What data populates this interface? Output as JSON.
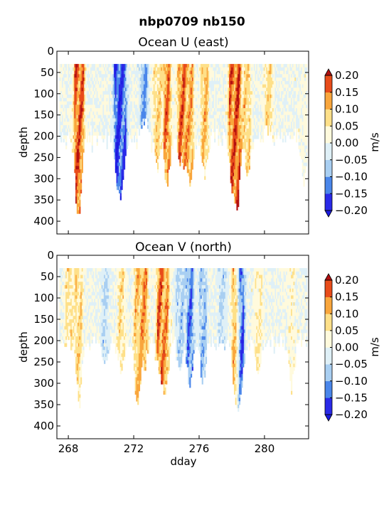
{
  "figure": {
    "title": "nbp0709 nb150"
  },
  "chart_data": [
    {
      "type": "heatmap",
      "title": "Ocean U (east)",
      "xlabel": "",
      "ylabel": "depth",
      "xlim": [
        267.3,
        282.7
      ],
      "ylim": [
        430,
        0
      ],
      "x_ticks": [
        268,
        272,
        276,
        280
      ],
      "x_tick_labels": [
        "",
        "",
        "",
        ""
      ],
      "y_ticks": [
        0,
        50,
        100,
        150,
        200,
        250,
        300,
        350,
        400
      ],
      "y_tick_labels": [
        "0",
        "50",
        "100",
        "150",
        "200",
        "250",
        "300",
        "350",
        "400"
      ],
      "colorbar": {
        "label": "m/s",
        "levels": [
          -0.2,
          -0.15,
          -0.1,
          -0.05,
          0.0,
          0.05,
          0.1,
          0.15,
          0.2
        ],
        "tick_labels": [
          "−0.20",
          "−0.15",
          "−0.10",
          "−0.05",
          "0.00",
          "0.05",
          "0.10",
          "0.15",
          "0.20"
        ],
        "extend": "both"
      },
      "data_depth_range": [
        30,
        375
      ],
      "features": [
        {
          "x": 268.55,
          "depth_bottom": 372,
          "value": 0.22
        },
        {
          "x": 268.7,
          "depth_bottom": 250,
          "value": 0.2
        },
        {
          "x": 271.0,
          "depth_bottom": 315,
          "value": -0.22
        },
        {
          "x": 271.3,
          "depth_bottom": 290,
          "value": -0.18
        },
        {
          "x": 272.6,
          "depth_bottom": 150,
          "value": -0.12
        },
        {
          "x": 273.4,
          "depth_bottom": 260,
          "value": 0.1
        },
        {
          "x": 274.0,
          "depth_bottom": 310,
          "value": 0.18
        },
        {
          "x": 274.9,
          "depth_bottom": 270,
          "value": 0.2
        },
        {
          "x": 275.4,
          "depth_bottom": 310,
          "value": 0.15
        },
        {
          "x": 276.3,
          "depth_bottom": 280,
          "value": 0.12
        },
        {
          "x": 278.0,
          "depth_bottom": 325,
          "value": 0.2
        },
        {
          "x": 278.3,
          "depth_bottom": 340,
          "value": 0.22
        },
        {
          "x": 278.9,
          "depth_bottom": 290,
          "value": 0.1
        },
        {
          "x": 280.2,
          "depth_bottom": 180,
          "value": 0.1
        },
        {
          "x": 282.4,
          "depth_bottom": 300,
          "value": 0.02
        }
      ]
    },
    {
      "type": "heatmap",
      "title": "Ocean V (north)",
      "xlabel": "dday",
      "ylabel": "depth",
      "xlim": [
        267.3,
        282.7
      ],
      "ylim": [
        430,
        0
      ],
      "x_ticks": [
        268,
        272,
        276,
        280
      ],
      "x_tick_labels": [
        "268",
        "272",
        "276",
        "280"
      ],
      "y_ticks": [
        0,
        50,
        100,
        150,
        200,
        250,
        300,
        350,
        400
      ],
      "y_tick_labels": [
        "0",
        "50",
        "100",
        "150",
        "200",
        "250",
        "300",
        "350",
        "400"
      ],
      "colorbar": {
        "label": "m/s",
        "levels": [
          -0.2,
          -0.15,
          -0.1,
          -0.05,
          0.0,
          0.05,
          0.1,
          0.15,
          0.2
        ],
        "tick_labels": [
          "−0.20",
          "−0.15",
          "−0.10",
          "−0.05",
          "0.00",
          "0.05",
          "0.10",
          "0.15",
          "0.20"
        ],
        "extend": "both"
      },
      "data_depth_range": [
        30,
        375
      ],
      "features": [
        {
          "x": 268.0,
          "depth_bottom": 200,
          "value": 0.08
        },
        {
          "x": 268.6,
          "depth_bottom": 355,
          "value": 0.1
        },
        {
          "x": 270.2,
          "depth_bottom": 250,
          "value": -0.06
        },
        {
          "x": 271.2,
          "depth_bottom": 270,
          "value": 0.08
        },
        {
          "x": 272.2,
          "depth_bottom": 355,
          "value": 0.12
        },
        {
          "x": 272.6,
          "depth_bottom": 250,
          "value": 0.16
        },
        {
          "x": 273.6,
          "depth_bottom": 270,
          "value": 0.2
        },
        {
          "x": 273.9,
          "depth_bottom": 320,
          "value": 0.15
        },
        {
          "x": 274.8,
          "depth_bottom": 270,
          "value": -0.08
        },
        {
          "x": 275.4,
          "depth_bottom": 300,
          "value": -0.15
        },
        {
          "x": 276.2,
          "depth_bottom": 290,
          "value": -0.1
        },
        {
          "x": 277.4,
          "depth_bottom": 200,
          "value": -0.06
        },
        {
          "x": 278.2,
          "depth_bottom": 335,
          "value": 0.15
        },
        {
          "x": 278.5,
          "depth_bottom": 320,
          "value": -0.2
        },
        {
          "x": 279.6,
          "depth_bottom": 280,
          "value": 0.06
        },
        {
          "x": 281.6,
          "depth_bottom": 300,
          "value": 0.04
        }
      ]
    }
  ],
  "colors": {
    "levels": [
      "#2a2ae8",
      "#4a86ea",
      "#a9cff2",
      "#dff0f7",
      "#fffadd",
      "#fee089",
      "#f9a63c",
      "#e84c1a",
      "#c11a12"
    ],
    "under": "#1a1ae0",
    "over": "#b21010"
  }
}
